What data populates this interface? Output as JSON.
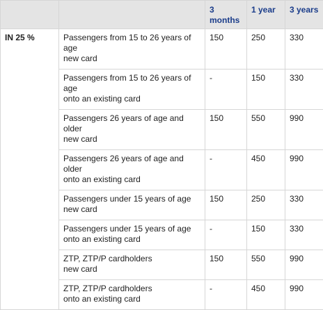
{
  "table": {
    "headers": [
      "",
      "",
      "3 months",
      "1 year",
      "3 years"
    ],
    "category": "IN 25 %",
    "rows": [
      {
        "desc": [
          "Passengers from 15 to 26 years of age",
          "new card"
        ],
        "m3": "150",
        "y1": "250",
        "y3": "330"
      },
      {
        "desc": [
          "Passengers from 15 to 26 years of age",
          "onto an existing card"
        ],
        "m3": "-",
        "y1": "150",
        "y3": "330"
      },
      {
        "desc": [
          "Passengers 26 years of age and older",
          "new card"
        ],
        "m3": "150",
        "y1": "550",
        "y3": "990"
      },
      {
        "desc": [
          "Passengers 26 years of age and older",
          "onto an existing card"
        ],
        "m3": "-",
        "y1": "450",
        "y3": "990"
      },
      {
        "desc": [
          "Passengers under 15 years of age",
          "new card"
        ],
        "m3": "150",
        "y1": "250",
        "y3": "330"
      },
      {
        "desc": [
          "Passengers under 15 years of age",
          "onto an existing card"
        ],
        "m3": "-",
        "y1": "150",
        "y3": "330"
      },
      {
        "desc": [
          "ZTP, ZTP/P cardholders",
          "new card"
        ],
        "m3": "150",
        "y1": "550",
        "y3": "990"
      },
      {
        "desc": [
          "ZTP, ZTP/P cardholders",
          "onto an existing card"
        ],
        "m3": "-",
        "y1": "450",
        "y3": "990"
      }
    ]
  }
}
